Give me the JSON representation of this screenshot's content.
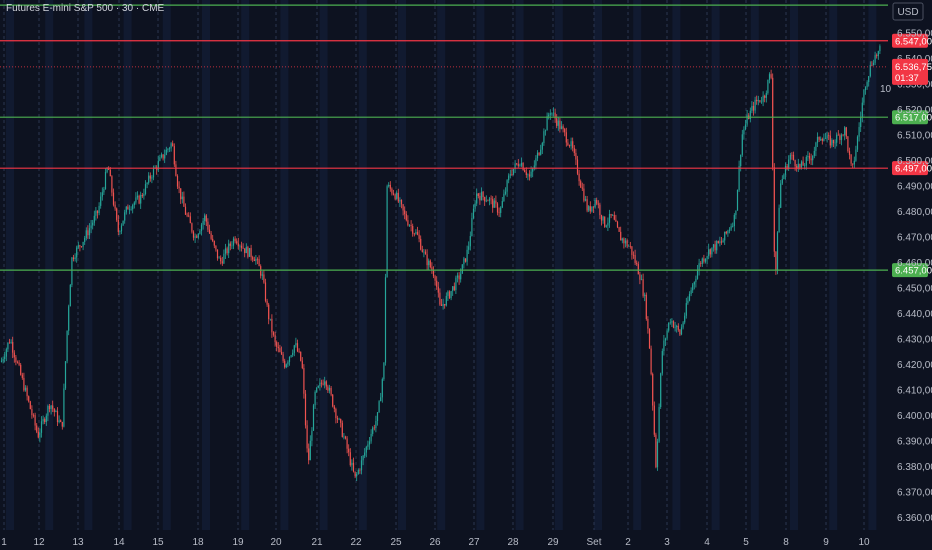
{
  "chart_data": {
    "type": "candlestick",
    "title": "Futures E-mini S&P 500 · 30 · CME",
    "currency_label": "USD",
    "price_axis": {
      "range": [
        6355,
        6563
      ],
      "ticks": [
        "6.550,00",
        "6.540,00",
        "6.530,00",
        "6.520,00",
        "6.510,00",
        "6.500,00",
        "6.490,00",
        "6.480,00",
        "6.470,00",
        "6.460,00",
        "6.450,00",
        "6.440,00",
        "6.430,00",
        "6.420,00",
        "6.410,00",
        "6.400,00",
        "6.390,00",
        "6.380,00",
        "6.370,00",
        "6.360,00"
      ],
      "tick_values": [
        6550,
        6540,
        6530,
        6520,
        6510,
        6500,
        6490,
        6480,
        6470,
        6460,
        6450,
        6440,
        6430,
        6420,
        6410,
        6400,
        6390,
        6380,
        6370,
        6360
      ]
    },
    "date_axis": {
      "labels": [
        "1",
        "12",
        "13",
        "14",
        "15",
        "18",
        "19",
        "20",
        "21",
        "22",
        "25",
        "26",
        "27",
        "28",
        "29",
        "Set",
        "2",
        "3",
        "4",
        "5",
        "8",
        "9",
        "10"
      ],
      "label_x": [
        4,
        39,
        78,
        119,
        158,
        198,
        238,
        276,
        317,
        356,
        396,
        435,
        474,
        513,
        553,
        594,
        628,
        667,
        707,
        746,
        786,
        826,
        864
      ]
    },
    "levels": [
      {
        "price": 6561,
        "label": "",
        "color": "#4caf50"
      },
      {
        "price": 6547,
        "label": "6.547,00",
        "color": "#f23645"
      },
      {
        "price": 6517,
        "label": "6.517,00",
        "color": "#4caf50"
      },
      {
        "price": 6497,
        "label": "6.497,00",
        "color": "#f23645"
      },
      {
        "price": 6457,
        "label": "6.457,00",
        "color": "#4caf50"
      }
    ],
    "last_price": {
      "value": 6536.75,
      "label": "6.536,75",
      "countdown": "01:37",
      "color": "#f23645"
    },
    "side_marker": "10",
    "path": [
      [
        0,
        6420
      ],
      [
        10,
        6430
      ],
      [
        25,
        6410
      ],
      [
        38,
        6392
      ],
      [
        50,
        6405
      ],
      [
        62,
        6395
      ],
      [
        68,
        6440
      ],
      [
        72,
        6462
      ],
      [
        85,
        6470
      ],
      [
        98,
        6480
      ],
      [
        108,
        6498
      ],
      [
        118,
        6472
      ],
      [
        128,
        6482
      ],
      [
        140,
        6485
      ],
      [
        152,
        6495
      ],
      [
        165,
        6503
      ],
      [
        172,
        6507
      ],
      [
        178,
        6490
      ],
      [
        185,
        6480
      ],
      [
        195,
        6470
      ],
      [
        205,
        6478
      ],
      [
        212,
        6468
      ],
      [
        220,
        6460
      ],
      [
        235,
        6470
      ],
      [
        245,
        6465
      ],
      [
        255,
        6462
      ],
      [
        262,
        6455
      ],
      [
        268,
        6440
      ],
      [
        275,
        6428
      ],
      [
        285,
        6420
      ],
      [
        295,
        6428
      ],
      [
        302,
        6420
      ],
      [
        308,
        6380
      ],
      [
        315,
        6408
      ],
      [
        325,
        6415
      ],
      [
        335,
        6402
      ],
      [
        345,
        6390
      ],
      [
        355,
        6375
      ],
      [
        362,
        6382
      ],
      [
        370,
        6392
      ],
      [
        378,
        6400
      ],
      [
        384,
        6420
      ],
      [
        387,
        6490
      ],
      [
        395,
        6487
      ],
      [
        405,
        6478
      ],
      [
        418,
        6470
      ],
      [
        425,
        6462
      ],
      [
        435,
        6455
      ],
      [
        440,
        6442
      ],
      [
        450,
        6448
      ],
      [
        460,
        6455
      ],
      [
        468,
        6465
      ],
      [
        476,
        6487
      ],
      [
        488,
        6485
      ],
      [
        500,
        6480
      ],
      [
        510,
        6495
      ],
      [
        520,
        6500
      ],
      [
        530,
        6493
      ],
      [
        540,
        6505
      ],
      [
        550,
        6520
      ],
      [
        562,
        6512
      ],
      [
        572,
        6505
      ],
      [
        580,
        6492
      ],
      [
        588,
        6480
      ],
      [
        596,
        6485
      ],
      [
        604,
        6475
      ],
      [
        612,
        6478
      ],
      [
        620,
        6470
      ],
      [
        630,
        6466
      ],
      [
        640,
        6455
      ],
      [
        645,
        6445
      ],
      [
        650,
        6425
      ],
      [
        656,
        6380
      ],
      [
        662,
        6425
      ],
      [
        670,
        6438
      ],
      [
        680,
        6432
      ],
      [
        690,
        6448
      ],
      [
        700,
        6460
      ],
      [
        710,
        6465
      ],
      [
        722,
        6468
      ],
      [
        735,
        6478
      ],
      [
        742,
        6510
      ],
      [
        748,
        6517
      ],
      [
        756,
        6523
      ],
      [
        764,
        6525
      ],
      [
        771,
        6535
      ],
      [
        775,
        6450
      ],
      [
        780,
        6490
      ],
      [
        790,
        6502
      ],
      [
        800,
        6497
      ],
      [
        812,
        6502
      ],
      [
        820,
        6510
      ],
      [
        832,
        6507
      ],
      [
        845,
        6512
      ],
      [
        852,
        6495
      ],
      [
        858,
        6510
      ],
      [
        865,
        6530
      ],
      [
        873,
        6540
      ],
      [
        880,
        6543
      ]
    ]
  }
}
